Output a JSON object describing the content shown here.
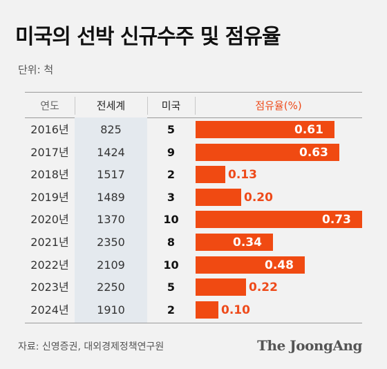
{
  "title": "미국의 선박 신규수주 및 점유율",
  "unit": "단위: 척",
  "headers": {
    "year": "연도",
    "world": "전세계",
    "us": "미국",
    "share": "점유율(%)"
  },
  "source": "자료: 신영증권, 대외경제정책연구원",
  "brand": "The JoongAng",
  "colors": {
    "bar": "#f04a12",
    "header_share": "#ee4a1a",
    "world_col_bg": "#e4e9ee",
    "background": "#f2f2f2"
  },
  "chart_data": {
    "type": "table",
    "title": "미국의 선박 신규수주 및 점유율",
    "columns": [
      "연도",
      "전세계",
      "미국",
      "점유율(%)"
    ],
    "rows": [
      {
        "year": "2016년",
        "world": "825",
        "us": "5",
        "share": 0.61,
        "share_label": "0.61"
      },
      {
        "year": "2017년",
        "world": "1424",
        "us": "9",
        "share": 0.63,
        "share_label": "0.63"
      },
      {
        "year": "2018년",
        "world": "1517",
        "us": "2",
        "share": 0.13,
        "share_label": "0.13"
      },
      {
        "year": "2019년",
        "world": "1489",
        "us": "3",
        "share": 0.2,
        "share_label": "0.20"
      },
      {
        "year": "2020년",
        "world": "1370",
        "us": "10",
        "share": 0.73,
        "share_label": "0.73"
      },
      {
        "year": "2021년",
        "world": "2350",
        "us": "8",
        "share": 0.34,
        "share_label": "0.34"
      },
      {
        "year": "2022년",
        "world": "2109",
        "us": "10",
        "share": 0.48,
        "share_label": "0.48"
      },
      {
        "year": "2023년",
        "world": "2250",
        "us": "5",
        "share": 0.22,
        "share_label": "0.22"
      },
      {
        "year": "2024년",
        "world": "1910",
        "us": "2",
        "share": 0.1,
        "share_label": "0.10"
      }
    ],
    "share_axis_max": 0.73
  }
}
